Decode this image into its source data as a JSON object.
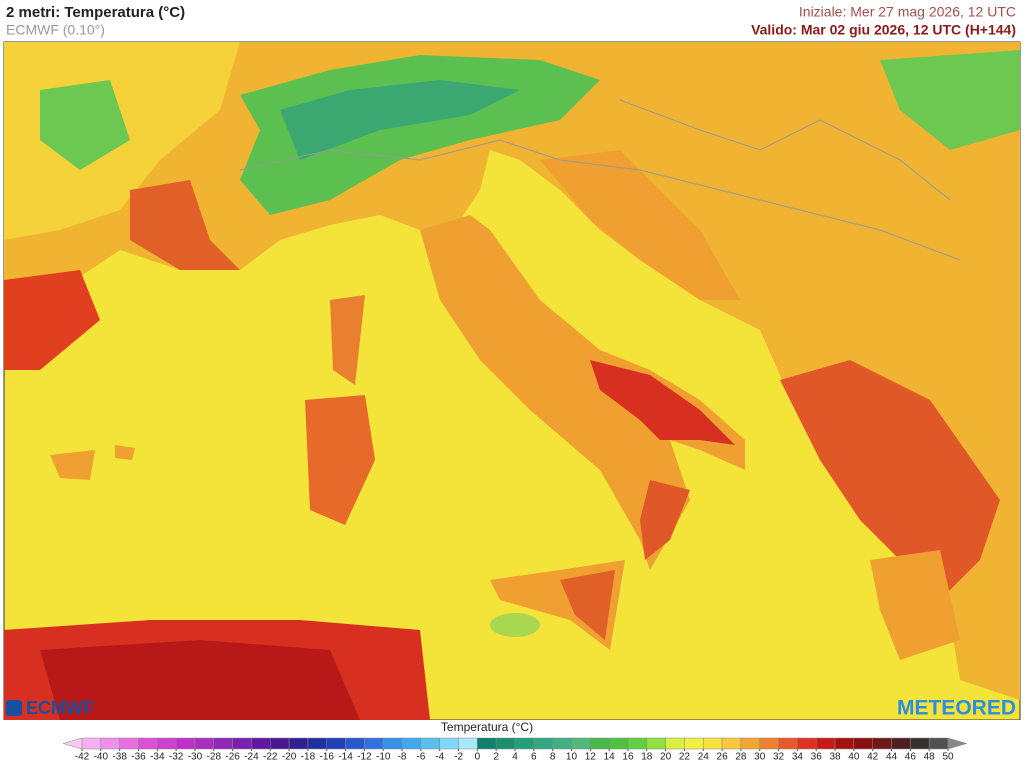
{
  "header": {
    "title": "2 metri: Temperatura (°C)",
    "model": "ECMWF (0.10°)",
    "initial": "Iniziale: Mer 27 mag 2026, 12 UTC",
    "valid": "Valido: Mar 02 giu 2026, 12 UTC (H+144)"
  },
  "logos": {
    "left": "ECMWF",
    "right": "METEORED"
  },
  "colorbar": {
    "title": "Temperatura (°C)",
    "ticks": [
      -42,
      -40,
      -38,
      -36,
      -34,
      -32,
      -30,
      -28,
      -26,
      -24,
      -22,
      -20,
      -18,
      -16,
      -14,
      -12,
      -10,
      -8,
      -6,
      -4,
      -2,
      0,
      2,
      4,
      6,
      8,
      10,
      12,
      14,
      16,
      18,
      20,
      22,
      24,
      26,
      28,
      30,
      32,
      34,
      36,
      38,
      40,
      42,
      44,
      46,
      48,
      50
    ],
    "colors": [
      "#f9c8f5",
      "#f5b0f0",
      "#ee90ea",
      "#e670e2",
      "#dc50d8",
      "#d040d0",
      "#c030c8",
      "#a830c0",
      "#9028b8",
      "#7820b0",
      "#6018a0",
      "#481890",
      "#302090",
      "#2030a0",
      "#2040b8",
      "#2858d0",
      "#3070e0",
      "#3890e8",
      "#40a8f0",
      "#58c0f0",
      "#80d8f8",
      "#a8e8f8",
      "#10806a",
      "#189070",
      "#20a078",
      "#30a880",
      "#40b080",
      "#50b878",
      "#48b848",
      "#50c040",
      "#60d040",
      "#90e040",
      "#d8f040",
      "#f0f040",
      "#f8e040",
      "#f8c838",
      "#f0a830",
      "#f08030",
      "#e85828",
      "#e03020",
      "#c81818",
      "#a81010",
      "#881010",
      "#701818",
      "#502020",
      "#383030",
      "#505050",
      "#888888"
    ]
  }
}
